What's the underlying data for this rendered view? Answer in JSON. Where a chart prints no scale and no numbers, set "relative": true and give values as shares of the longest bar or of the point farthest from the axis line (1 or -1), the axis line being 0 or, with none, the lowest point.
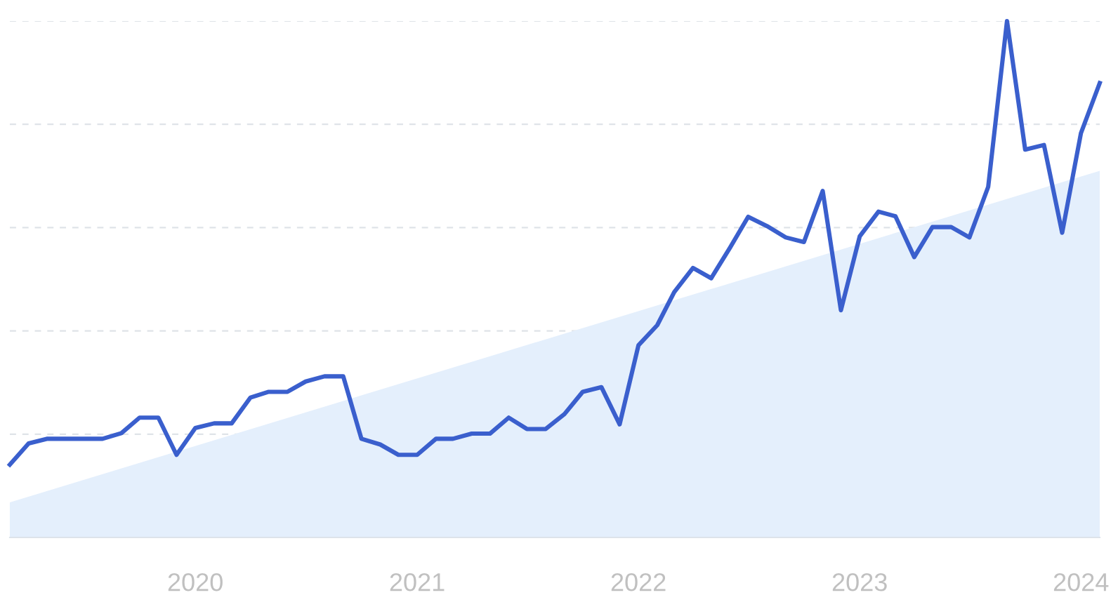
{
  "chart_data": {
    "type": "line",
    "relative": true,
    "grid": "y",
    "line_style": "solid",
    "marker": "none",
    "xlim": [
      "2019-03",
      "2024-02"
    ],
    "xticks": [
      "2020",
      "2021",
      "2022",
      "2023",
      "2024"
    ],
    "x": [
      "2019-03",
      "2019-04",
      "2019-05",
      "2019-06",
      "2019-07",
      "2019-08",
      "2019-09",
      "2019-10",
      "2019-11",
      "2019-12",
      "2020-01",
      "2020-02",
      "2020-03",
      "2020-04",
      "2020-05",
      "2020-06",
      "2020-07",
      "2020-08",
      "2020-09",
      "2020-10",
      "2020-11",
      "2020-12",
      "2021-01",
      "2021-02",
      "2021-03",
      "2021-04",
      "2021-05",
      "2021-06",
      "2021-07",
      "2021-08",
      "2021-09",
      "2021-10",
      "2021-11",
      "2021-12",
      "2022-01",
      "2022-02",
      "2022-03",
      "2022-04",
      "2022-05",
      "2022-06",
      "2022-07",
      "2022-08",
      "2022-09",
      "2022-10",
      "2022-11",
      "2022-12",
      "2023-01",
      "2023-02",
      "2023-03",
      "2023-04",
      "2023-05",
      "2023-06",
      "2023-07",
      "2023-08",
      "2023-09",
      "2023-10",
      "2023-11",
      "2023-12",
      "2024-01",
      "2024-02"
    ],
    "series": [
      {
        "type": "area",
        "color": "#e4effc",
        "x": [
          "2019-03",
          "2024-02"
        ],
        "values": [
          0.068,
          0.71
        ]
      },
      {
        "color": "#3a5fcd",
        "values": [
          0.141,
          0.182,
          0.191,
          0.191,
          0.191,
          0.191,
          0.202,
          0.232,
          0.232,
          0.16,
          0.212,
          0.221,
          0.221,
          0.271,
          0.282,
          0.282,
          0.302,
          0.312,
          0.312,
          0.191,
          0.18,
          0.16,
          0.16,
          0.191,
          0.191,
          0.201,
          0.201,
          0.232,
          0.21,
          0.21,
          0.239,
          0.282,
          0.291,
          0.219,
          0.372,
          0.411,
          0.475,
          0.522,
          0.502,
          0.561,
          0.621,
          0.603,
          0.581,
          0.572,
          0.671,
          0.44,
          0.583,
          0.631,
          0.622,
          0.543,
          0.601,
          0.601,
          0.581,
          0.679,
          1.0,
          0.751,
          0.76,
          0.59,
          0.783,
          0.88
        ]
      }
    ]
  }
}
